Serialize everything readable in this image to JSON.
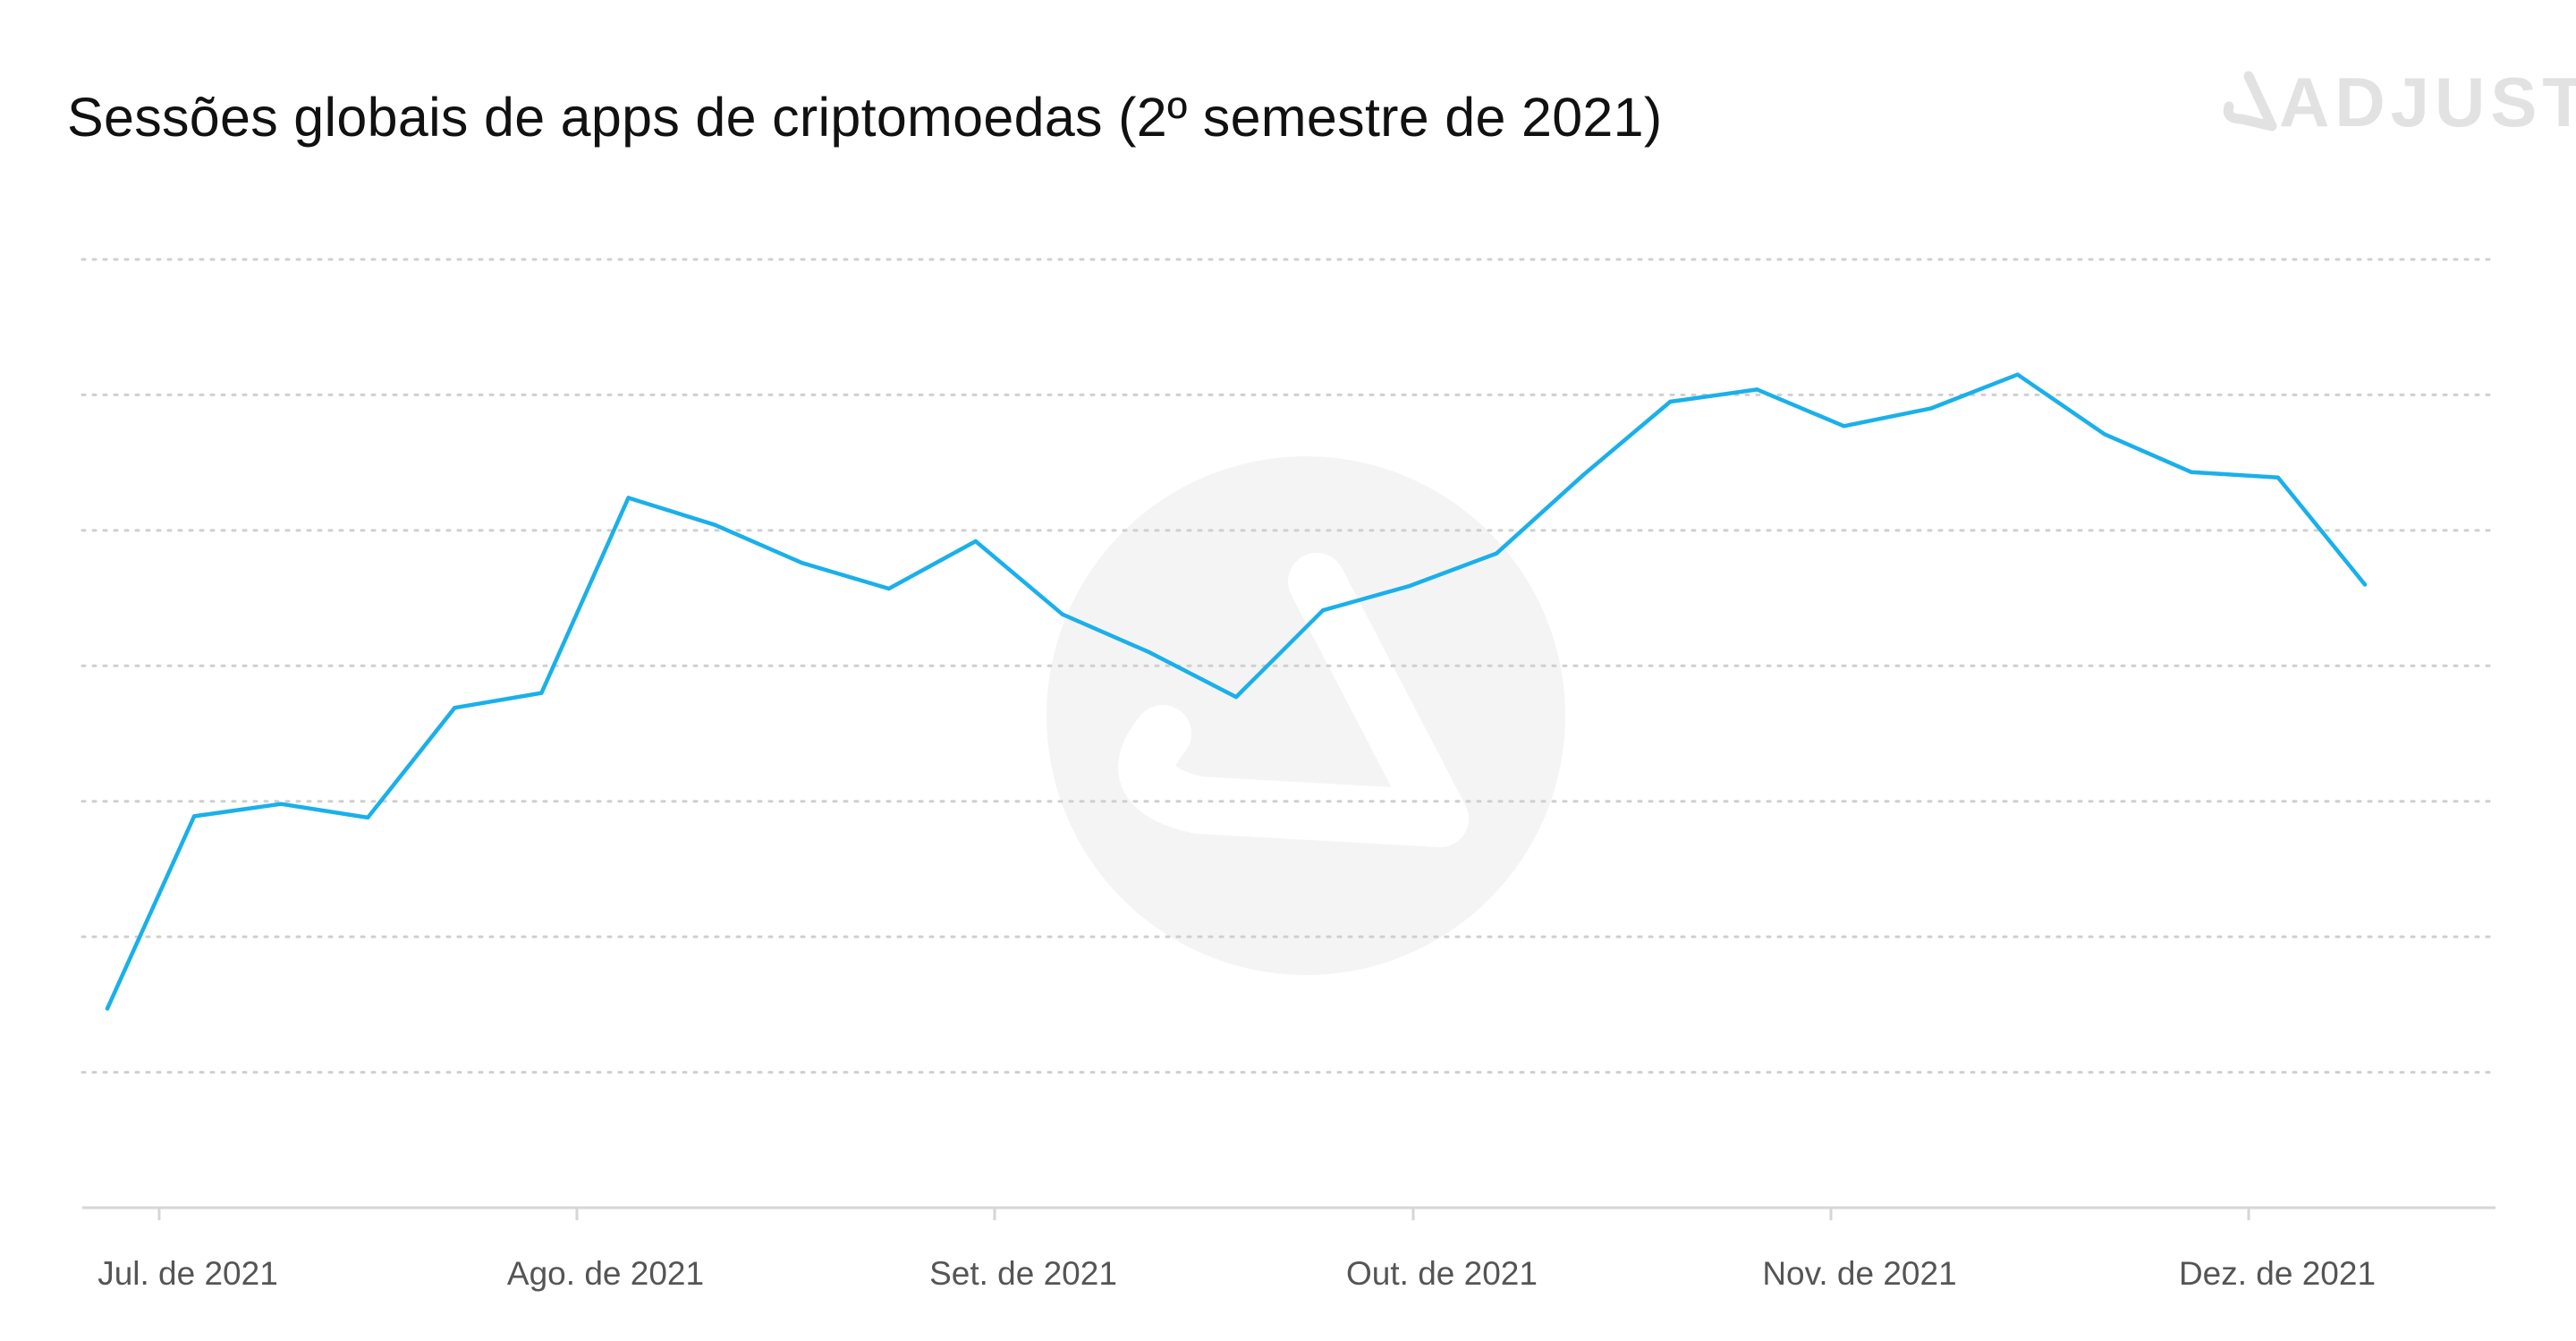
{
  "brand": {
    "logo_text": "ADJUST",
    "logo_color": "#e2e2e2",
    "watermark_color": "#f5f4f5"
  },
  "chart_data": {
    "type": "line",
    "title": "Sessões globais de apps de criptomoedas (2º semestre de 2021)",
    "xlabel": "",
    "ylabel": "",
    "x_tick_labels": [
      "Jul. de 2021",
      "Ago. de 2021",
      "Set. de 2021",
      "Out. de 2021",
      "Nov. de 2021",
      "Dez. de 2021"
    ],
    "y_axis_labels_shown": false,
    "ylim": [
      0,
      7
    ],
    "grid": true,
    "line_color": "#1ab0ea",
    "series": [
      {
        "values": [
          1.47,
          2.89,
          2.98,
          2.88,
          3.69,
          3.8,
          5.24,
          5.04,
          4.76,
          4.57,
          4.92,
          4.38,
          4.1,
          3.77,
          4.41,
          4.59,
          4.83,
          5.41,
          5.95,
          6.04,
          5.77,
          5.9,
          6.15,
          5.71,
          5.43,
          5.39,
          4.6
        ]
      }
    ]
  }
}
